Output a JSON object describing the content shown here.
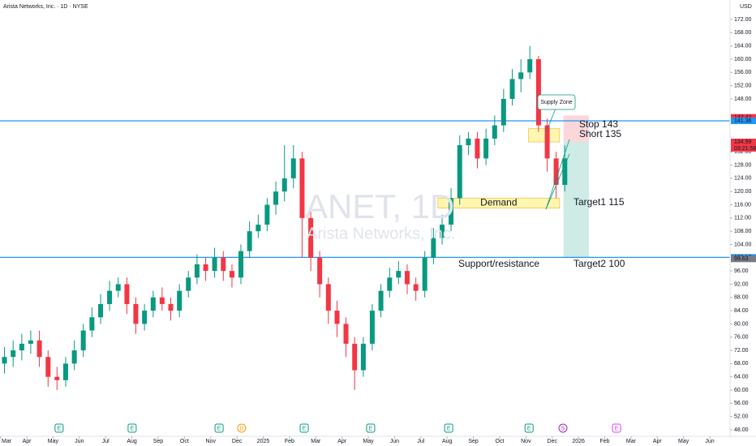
{
  "chart_data": {
    "type": "candlestick",
    "header": "Arista Networks, Inc. · 1D · NYSE",
    "currency": "USD",
    "watermark": "ANET, 1D",
    "watermark_sub": "Arista Networks, Inc.",
    "colors": {
      "up": "#089981",
      "down": "#f23645"
    },
    "xlim": [
      -1.02,
      26.77
    ],
    "ylim": [
      48,
      172
    ],
    "xticks": [
      {
        "value": -1,
        "label": "Mar"
      },
      {
        "value": 0,
        "label": "Apr"
      },
      {
        "value": 1,
        "label": "May"
      },
      {
        "value": 2,
        "label": "Jun"
      },
      {
        "value": 3,
        "label": "Jul"
      },
      {
        "value": 4,
        "label": "Aug"
      },
      {
        "value": 5,
        "label": "Sep"
      },
      {
        "value": 6,
        "label": "Oct"
      },
      {
        "value": 7,
        "label": "Nov"
      },
      {
        "value": 8,
        "label": "Dec"
      },
      {
        "value": 9,
        "label": "2025"
      },
      {
        "value": 10,
        "label": "Feb"
      },
      {
        "value": 11,
        "label": "Mar"
      },
      {
        "value": 12,
        "label": "Apr"
      },
      {
        "value": 13,
        "label": "May"
      },
      {
        "value": 14,
        "label": "Jun"
      },
      {
        "value": 15,
        "label": "Jul"
      },
      {
        "value": 16,
        "label": "Aug"
      },
      {
        "value": 17,
        "label": "Sep"
      },
      {
        "value": 18,
        "label": "Oct"
      },
      {
        "value": 19,
        "label": "Nov"
      },
      {
        "value": 20,
        "label": "Dec"
      },
      {
        "value": 21,
        "label": "2026"
      },
      {
        "value": 22,
        "label": "Feb"
      },
      {
        "value": 23,
        "label": "Mar"
      },
      {
        "value": 24,
        "label": "Apr"
      },
      {
        "value": 25,
        "label": "May"
      },
      {
        "value": 26,
        "label": "Jun"
      }
    ],
    "yticks": [
      {
        "value": 48,
        "label": "48.00"
      },
      {
        "value": 52,
        "label": "52.00"
      },
      {
        "value": 56,
        "label": "56.00"
      },
      {
        "value": 60,
        "label": "60.00"
      },
      {
        "value": 64,
        "label": "64.00"
      },
      {
        "value": 68,
        "label": "68.00"
      },
      {
        "value": 72,
        "label": "72.00"
      },
      {
        "value": 76,
        "label": "76.00"
      },
      {
        "value": 80,
        "label": "80.00"
      },
      {
        "value": 84,
        "label": "84.00"
      },
      {
        "value": 88,
        "label": "88.00"
      },
      {
        "value": 92,
        "label": "92.00"
      },
      {
        "value": 96,
        "label": "96.00"
      },
      {
        "value": 104,
        "label": "104.00"
      },
      {
        "value": 108,
        "label": "108.00"
      },
      {
        "value": 112,
        "label": "112.00"
      },
      {
        "value": 116,
        "label": "116.00"
      },
      {
        "value": 120,
        "label": "120.00"
      },
      {
        "value": 124,
        "label": "124.00"
      },
      {
        "value": 128,
        "label": "128.00"
      },
      {
        "value": 132,
        "label": "132.00"
      },
      {
        "value": 148,
        "label": "148.00"
      },
      {
        "value": 152,
        "label": "152.00"
      },
      {
        "value": 156,
        "label": "156.00"
      },
      {
        "value": 160,
        "label": "160.00"
      },
      {
        "value": 164,
        "label": "164.00"
      },
      {
        "value": 168,
        "label": "168.00"
      },
      {
        "value": 172,
        "label": "172.00"
      }
    ],
    "x": [
      -0.85,
      -0.52,
      -0.19,
      0.15,
      0.48,
      0.81,
      1.15,
      1.48,
      1.81,
      2.15,
      2.48,
      2.81,
      3.15,
      3.48,
      3.81,
      4.15,
      4.48,
      4.81,
      5.15,
      5.48,
      5.81,
      6.15,
      6.48,
      6.81,
      7.15,
      7.48,
      7.81,
      8.15,
      8.48,
      8.81,
      9.15,
      9.48,
      9.81,
      10.15,
      10.48,
      10.81,
      11.15,
      11.48,
      11.81,
      12.15,
      12.48,
      12.81,
      13.15,
      13.48,
      13.81,
      14.15,
      14.48,
      14.81,
      15.15,
      15.48,
      15.81,
      16.15,
      16.48,
      16.81,
      17.15,
      17.48,
      17.81,
      18.15,
      18.48,
      18.81,
      19.15,
      19.48,
      19.81,
      20.15,
      20.48
    ],
    "open": [
      68,
      70,
      72,
      74,
      75,
      70,
      64,
      63,
      68,
      72,
      78,
      82,
      86,
      90,
      92,
      86,
      80,
      84,
      88,
      86,
      84,
      90,
      94,
      98,
      96,
      100,
      96,
      94,
      102,
      108,
      110,
      116,
      120,
      124,
      130,
      112,
      100,
      92,
      84,
      80,
      74,
      66,
      74,
      84,
      90,
      94,
      96,
      92,
      90,
      100,
      106,
      110,
      118,
      134,
      136,
      130,
      136,
      140,
      148,
      154,
      156,
      160,
      140,
      130,
      122
    ],
    "high": [
      73,
      75,
      77,
      78,
      78,
      72,
      67,
      70,
      75,
      80,
      85,
      89,
      93,
      94,
      94,
      88,
      86,
      90,
      91,
      88,
      92,
      96,
      101,
      100,
      103,
      102,
      98,
      104,
      111,
      113,
      118,
      123,
      134,
      134,
      132,
      114,
      102,
      94,
      87,
      82,
      76,
      76,
      86,
      92,
      97,
      99,
      98,
      94,
      102,
      109,
      113,
      121,
      137,
      138,
      138,
      139,
      143,
      151,
      157,
      160,
      164,
      161,
      142,
      132,
      134
    ],
    "low": [
      65,
      67,
      69,
      71,
      67,
      61,
      60,
      61,
      66,
      70,
      76,
      80,
      84,
      88,
      83,
      77,
      78,
      82,
      84,
      81,
      82,
      88,
      92,
      93,
      94,
      93,
      91,
      92,
      100,
      106,
      108,
      113,
      117,
      121,
      100,
      96,
      88,
      80,
      76,
      70,
      60,
      64,
      72,
      82,
      88,
      92,
      89,
      87,
      88,
      98,
      104,
      108,
      116,
      131,
      127,
      128,
      134,
      138,
      146,
      150,
      154,
      138,
      126,
      118,
      120
    ],
    "close": [
      70,
      72,
      74,
      75,
      70,
      64,
      63,
      68,
      72,
      78,
      82,
      86,
      90,
      92,
      86,
      80,
      84,
      88,
      86,
      84,
      90,
      94,
      98,
      96,
      100,
      96,
      94,
      102,
      108,
      110,
      116,
      120,
      124,
      130,
      112,
      100,
      92,
      84,
      80,
      74,
      66,
      74,
      84,
      90,
      94,
      96,
      92,
      90,
      100,
      106,
      110,
      118,
      134,
      136,
      130,
      136,
      140,
      148,
      154,
      156,
      160,
      140,
      130,
      122,
      130
    ],
    "hlines": [
      {
        "value": 141.36,
        "color": "#2196f3"
      },
      {
        "value": 100.1,
        "color": "#2196f3"
      }
    ],
    "zones": [
      {
        "label": "Demand",
        "x": [
          15.65,
          20.28
        ],
        "y": [
          115,
          118
        ]
      },
      {
        "label": "Supply Zone",
        "x": [
          19.1,
          20.28
        ],
        "y": [
          135,
          139
        ]
      }
    ],
    "position": {
      "x": [
        20.43,
        21.4
      ],
      "stop": 143,
      "entry": 135,
      "target": 100
    },
    "texts": [
      "Stop 143",
      "Short 135",
      "Target1 115",
      "Target2 100",
      "Support/resistance"
    ],
    "price_labels": [
      {
        "value": 142.42,
        "label": "142.42",
        "color": "#f23645"
      },
      {
        "value": 141.36,
        "label": "141.36",
        "color": "#2196f3"
      },
      {
        "value": 135,
        "label": "135.00",
        "color": "#787b86"
      },
      {
        "value": 134.99,
        "label": "134.99",
        "color": "#f23645"
      },
      {
        "value": 100.1,
        "label": "100.10",
        "color": "#2196f3"
      },
      {
        "value": 99.63,
        "label": "99.63",
        "color": "#787b86"
      }
    ],
    "countdown": "03:21:58",
    "events": [
      {
        "x": 1.23,
        "label": "E",
        "color": "#089981"
      },
      {
        "x": 4.01,
        "label": "E",
        "color": "#089981"
      },
      {
        "x": 7.32,
        "label": "E",
        "color": "#089981"
      },
      {
        "x": 8.18,
        "label": "D",
        "color": "#ff9800"
      },
      {
        "x": 10.56,
        "label": "E",
        "color": "#089981"
      },
      {
        "x": 13.09,
        "label": "E",
        "color": "#089981"
      },
      {
        "x": 16.06,
        "label": "E",
        "color": "#089981"
      },
      {
        "x": 19.12,
        "label": "E",
        "color": "#089981"
      },
      {
        "x": 20.41,
        "label": "S",
        "color": "#9c27b0"
      },
      {
        "x": 22.45,
        "label": "E",
        "color": "#e040fb"
      }
    ]
  }
}
